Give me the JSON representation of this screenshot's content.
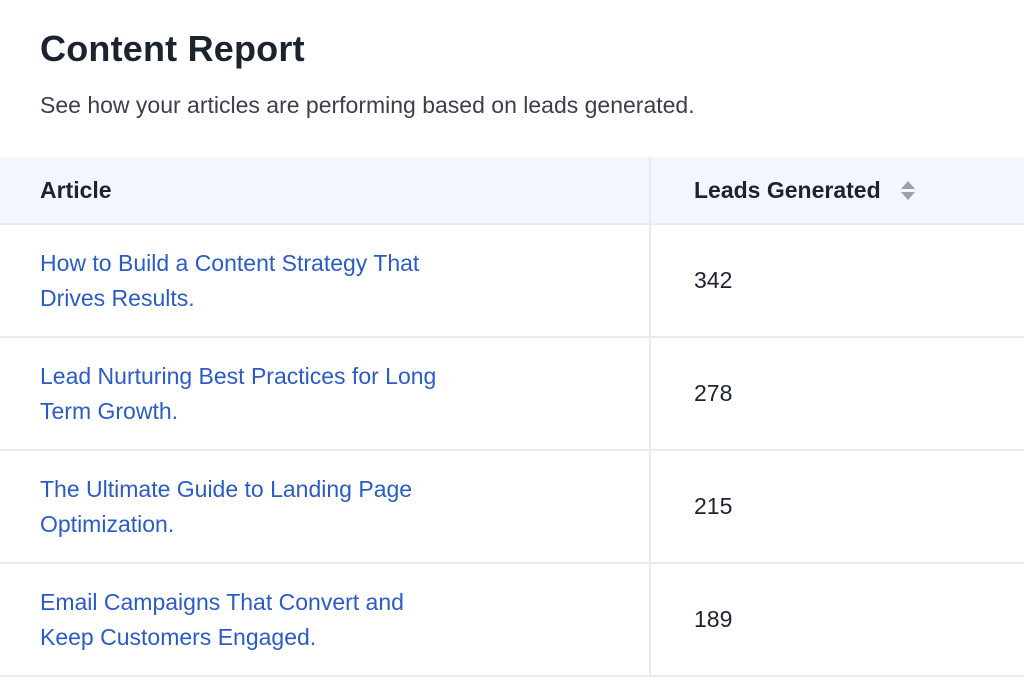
{
  "header": {
    "title": "Content Report",
    "subtitle": "See how your articles are performing based on leads generated."
  },
  "table": {
    "columns": {
      "article": "Article",
      "leads": "Leads Generated"
    },
    "rows": [
      {
        "article": "How to Build a Content Strategy That Drives Results.",
        "leads": "342"
      },
      {
        "article": "Lead Nurturing Best Practices for Long Term Growth.",
        "leads": "278"
      },
      {
        "article": "The Ultimate Guide to Landing Page Optimization.",
        "leads": "215"
      },
      {
        "article": "Email Campaigns That Convert and Keep Customers Engaged.",
        "leads": "189"
      }
    ]
  },
  "colors": {
    "link": "#2b5bc7",
    "header_bg": "#f2f6fd",
    "divider": "#e8ebf0"
  },
  "icons": {
    "sort": "sort-icon"
  }
}
